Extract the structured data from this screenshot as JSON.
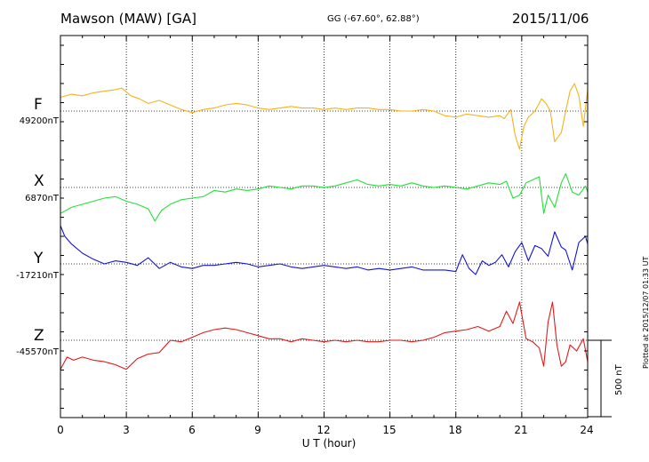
{
  "header": {
    "station": "Mawson (MAW)  [GA]",
    "coords": "GG (-67.60°,  62.88°)",
    "date": "2015/11/06",
    "plotted": "Plotted at 2015/12/07 01:33 UT"
  },
  "chart_data": {
    "type": "line",
    "xlabel": "U T (hour)",
    "xlim": [
      0,
      24
    ],
    "xticks": [
      "0",
      "3",
      "6",
      "9",
      "12",
      "15",
      "18",
      "21",
      "24"
    ],
    "grid": true,
    "scale_bar": {
      "value_nT": 500,
      "label": "500 nT"
    },
    "units": "nT",
    "series": [
      {
        "name": "F",
        "baseline_label": "49200nT",
        "baseline_nT": 49200,
        "color": "#f5b21a",
        "x": [
          0,
          0.5,
          1,
          1.5,
          2,
          2.5,
          2.8,
          3.2,
          3.6,
          4,
          4.5,
          5,
          5.5,
          6,
          6.5,
          7,
          7.5,
          8,
          8.5,
          9,
          9.5,
          10,
          10.5,
          11,
          11.5,
          12,
          12.5,
          13,
          13.5,
          14,
          14.5,
          15,
          15.5,
          16,
          16.5,
          17,
          17.5,
          18,
          18.5,
          19,
          19.5,
          20,
          20.2,
          20.5,
          20.7,
          20.9,
          21.1,
          21.3,
          21.6,
          21.9,
          22.1,
          22.3,
          22.5,
          22.8,
          23,
          23.2,
          23.4,
          23.6,
          23.8,
          24
        ],
        "values": [
          49290,
          49310,
          49300,
          49320,
          49330,
          49340,
          49350,
          49300,
          49280,
          49250,
          49270,
          49240,
          49210,
          49190,
          49210,
          49220,
          49240,
          49250,
          49240,
          49220,
          49210,
          49220,
          49230,
          49220,
          49220,
          49210,
          49220,
          49210,
          49220,
          49220,
          49210,
          49210,
          49200,
          49200,
          49210,
          49200,
          49170,
          49160,
          49180,
          49170,
          49160,
          49170,
          49150,
          49210,
          49040,
          48950,
          49100,
          49160,
          49200,
          49280,
          49250,
          49200,
          49000,
          49060,
          49200,
          49330,
          49380,
          49300,
          49100,
          49340
        ]
      },
      {
        "name": "X",
        "baseline_label": "6870nT",
        "baseline_nT": 6870,
        "color": "#22e038",
        "x": [
          0,
          0.5,
          1,
          1.5,
          2,
          2.5,
          3,
          3.5,
          4,
          4.3,
          4.6,
          5,
          5.5,
          6,
          6.5,
          7,
          7.5,
          8,
          8.5,
          9,
          9.5,
          10,
          10.5,
          11,
          11.5,
          12,
          12.5,
          13,
          13.5,
          14,
          14.5,
          15,
          15.5,
          16,
          16.5,
          17,
          17.5,
          18,
          18.5,
          19,
          19.5,
          20,
          20.3,
          20.6,
          20.9,
          21.2,
          21.5,
          21.8,
          22,
          22.2,
          22.5,
          22.8,
          23,
          23.3,
          23.6,
          23.9,
          24
        ],
        "values": [
          6700,
          6740,
          6760,
          6780,
          6800,
          6810,
          6780,
          6760,
          6730,
          6650,
          6720,
          6760,
          6790,
          6800,
          6810,
          6850,
          6840,
          6860,
          6850,
          6860,
          6880,
          6870,
          6860,
          6880,
          6880,
          6870,
          6880,
          6900,
          6920,
          6890,
          6880,
          6890,
          6880,
          6900,
          6880,
          6870,
          6880,
          6870,
          6860,
          6880,
          6900,
          6890,
          6910,
          6800,
          6820,
          6900,
          6920,
          6940,
          6700,
          6820,
          6740,
          6900,
          6960,
          6840,
          6820,
          6880,
          6840
        ]
      },
      {
        "name": "Y",
        "baseline_label": "-17210nT",
        "baseline_nT": -17210,
        "color": "#1414d8",
        "x": [
          0,
          0.2,
          0.5,
          1,
          1.5,
          2,
          2.5,
          3,
          3.5,
          4,
          4.5,
          5,
          5.5,
          6,
          6.5,
          7,
          7.5,
          8,
          8.5,
          9,
          9.5,
          10,
          10.5,
          11,
          11.5,
          12,
          12.5,
          13,
          13.5,
          14,
          14.5,
          15,
          15.5,
          16,
          16.5,
          17,
          17.5,
          18,
          18.3,
          18.6,
          18.9,
          19.2,
          19.5,
          19.8,
          20.1,
          20.4,
          20.7,
          21,
          21.3,
          21.6,
          21.9,
          22.2,
          22.5,
          22.8,
          23,
          23.3,
          23.6,
          23.9,
          24
        ],
        "values": [
          -16960,
          -17030,
          -17080,
          -17140,
          -17180,
          -17210,
          -17190,
          -17200,
          -17220,
          -17170,
          -17240,
          -17200,
          -17230,
          -17240,
          -17220,
          -17220,
          -17210,
          -17200,
          -17210,
          -17230,
          -17220,
          -17210,
          -17230,
          -17240,
          -17230,
          -17220,
          -17230,
          -17240,
          -17230,
          -17250,
          -17240,
          -17250,
          -17240,
          -17230,
          -17250,
          -17250,
          -17250,
          -17260,
          -17150,
          -17240,
          -17280,
          -17190,
          -17220,
          -17200,
          -17150,
          -17230,
          -17130,
          -17070,
          -17190,
          -17090,
          -17110,
          -17160,
          -17000,
          -17100,
          -17120,
          -17250,
          -17070,
          -17030,
          -17080
        ]
      },
      {
        "name": "Z",
        "baseline_label": "-45570nT",
        "baseline_nT": -45570,
        "color": "#e01a1a",
        "x": [
          0,
          0.3,
          0.6,
          1,
          1.5,
          2,
          2.5,
          3,
          3.5,
          4,
          4.5,
          5,
          5.5,
          6,
          6.5,
          7,
          7.5,
          8,
          8.5,
          9,
          9.5,
          10,
          10.5,
          11,
          11.5,
          12,
          12.5,
          13,
          13.5,
          14,
          14.5,
          15,
          15.5,
          16,
          16.5,
          17,
          17.5,
          18,
          18.5,
          19,
          19.5,
          20,
          20.3,
          20.6,
          20.9,
          21.2,
          21.5,
          21.8,
          22,
          22.2,
          22.4,
          22.6,
          22.8,
          23,
          23.2,
          23.5,
          23.8,
          24
        ],
        "values": [
          -45760,
          -45680,
          -45700,
          -45680,
          -45700,
          -45710,
          -45730,
          -45760,
          -45690,
          -45660,
          -45650,
          -45570,
          -45580,
          -45550,
          -45520,
          -45500,
          -45490,
          -45500,
          -45520,
          -45540,
          -45560,
          -45560,
          -45580,
          -45560,
          -45570,
          -45580,
          -45570,
          -45580,
          -45570,
          -45580,
          -45580,
          -45570,
          -45570,
          -45580,
          -45570,
          -45550,
          -45520,
          -45510,
          -45500,
          -45480,
          -45510,
          -45480,
          -45380,
          -45460,
          -45320,
          -45560,
          -45580,
          -45620,
          -45740,
          -45450,
          -45320,
          -45600,
          -45740,
          -45710,
          -45600,
          -45640,
          -45560,
          -45710
        ]
      }
    ]
  }
}
